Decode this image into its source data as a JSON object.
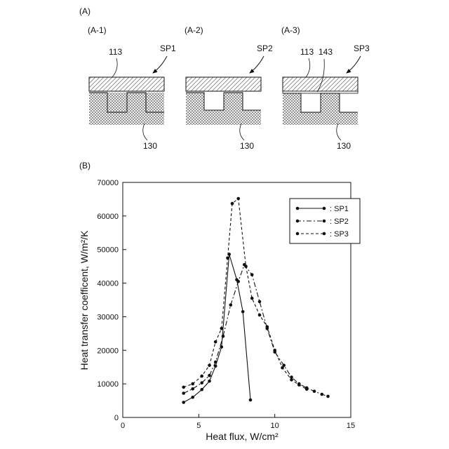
{
  "panel_a": {
    "label": "(A)",
    "sub_panels": [
      {
        "label": "(A-1)",
        "callout_top": "113",
        "sample": "SP1",
        "callout_bottom": "130"
      },
      {
        "label": "(A-2)",
        "callout_top": "",
        "sample": "SP2",
        "callout_bottom": "130"
      },
      {
        "label": "(A-3)",
        "callout_top": "113",
        "callout_mid": "143",
        "sample": "SP3",
        "callout_bottom": "130"
      }
    ]
  },
  "panel_b": {
    "label": "(B)"
  },
  "chart_data": {
    "type": "line",
    "title": "",
    "xlabel": "Heat flux,   W/cm²",
    "ylabel": "Heat transfer coefficent,  W/m²/K",
    "xlim": [
      0,
      15
    ],
    "ylim": [
      0,
      70000
    ],
    "x_ticks": [
      "0",
      "5",
      "10",
      "15"
    ],
    "y_ticks": [
      "0",
      "10000",
      "20000",
      "30000",
      "40000",
      "50000",
      "60000",
      "70000"
    ],
    "legend_position": "top-right",
    "series": [
      {
        "name": ": SP1",
        "style": "solid",
        "points": [
          [
            4.0,
            4500
          ],
          [
            4.6,
            6000
          ],
          [
            5.2,
            8300
          ],
          [
            5.7,
            10800
          ],
          [
            6.1,
            15300
          ],
          [
            6.5,
            21000
          ],
          [
            7.0,
            48600
          ],
          [
            7.5,
            41000
          ],
          [
            7.9,
            31500
          ],
          [
            8.4,
            5200
          ]
        ]
      },
      {
        "name": ": SP2",
        "style": "dashdot",
        "points": [
          [
            4.0,
            7200
          ],
          [
            4.6,
            8500
          ],
          [
            5.2,
            10300
          ],
          [
            5.7,
            12500
          ],
          [
            6.1,
            16500
          ],
          [
            6.6,
            24200
          ],
          [
            7.1,
            33500
          ],
          [
            7.6,
            40500
          ],
          [
            8.0,
            45500
          ],
          [
            8.5,
            42500
          ],
          [
            9.0,
            34500
          ],
          [
            9.5,
            26500
          ],
          [
            10.0,
            19500
          ],
          [
            10.6,
            15500
          ],
          [
            11.1,
            12000
          ],
          [
            11.6,
            10000
          ],
          [
            12.1,
            8800
          ],
          [
            12.6,
            7800
          ],
          [
            13.1,
            6900
          ],
          [
            13.5,
            6300
          ]
        ]
      },
      {
        "name": ": SP3",
        "style": "dashed",
        "points": [
          [
            4.0,
            9000
          ],
          [
            4.6,
            10000
          ],
          [
            5.2,
            12300
          ],
          [
            5.7,
            15500
          ],
          [
            6.1,
            22500
          ],
          [
            6.5,
            26500
          ],
          [
            6.9,
            47500
          ],
          [
            7.2,
            63700
          ],
          [
            7.6,
            65200
          ],
          [
            8.1,
            45000
          ],
          [
            8.5,
            35500
          ],
          [
            9.0,
            30500
          ],
          [
            9.5,
            27000
          ],
          [
            10.0,
            20000
          ],
          [
            10.5,
            14800
          ],
          [
            11.1,
            11200
          ],
          [
            11.6,
            9700
          ],
          [
            12.1,
            8400
          ]
        ]
      }
    ]
  }
}
